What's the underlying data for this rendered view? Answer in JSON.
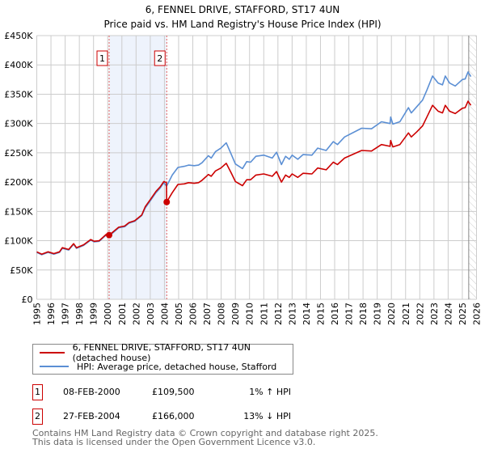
{
  "chart_data": {
    "type": "line",
    "title": "6, FENNEL DRIVE, STAFFORD, ST17 4UN",
    "subtitle": "Price paid vs. HM Land Registry's House Price Index (HPI)",
    "xlim": [
      1995,
      2026
    ],
    "ylim": [
      0,
      450000
    ],
    "y_ticks": [
      0,
      50000,
      100000,
      150000,
      200000,
      250000,
      300000,
      350000,
      400000,
      450000
    ],
    "y_tick_labels": [
      "£0",
      "£50K",
      "£100K",
      "£150K",
      "£200K",
      "£250K",
      "£300K",
      "£350K",
      "£400K",
      "£450K"
    ],
    "x_ticks": [
      1995,
      1996,
      1997,
      1998,
      1999,
      2000,
      2001,
      2002,
      2003,
      2004,
      2005,
      2006,
      2007,
      2008,
      2009,
      2010,
      2011,
      2012,
      2013,
      2014,
      2015,
      2016,
      2017,
      2018,
      2019,
      2020,
      2021,
      2022,
      2023,
      2024,
      2025,
      2026
    ],
    "x_tick_labels": [
      "1995",
      "1996",
      "1997",
      "1998",
      "1999",
      "2000",
      "2001",
      "2002",
      "2003",
      "2004",
      "2005",
      "2006",
      "2007",
      "2008",
      "2009",
      "2010",
      "2011",
      "2012",
      "2013",
      "2014",
      "2015",
      "2016",
      "2017",
      "2018",
      "2019",
      "2020",
      "2021",
      "2022",
      "2023",
      "2024",
      "2025",
      "2026"
    ],
    "grid": true,
    "shaded_period": [
      2000.1,
      2004.16
    ],
    "forecast_hatch_from": 2025.45,
    "series": [
      {
        "name": "6, FENNEL DRIVE, STAFFORD, ST17 4UN (detached house)",
        "color": "#cc0000",
        "x": [
          1995.0,
          1995.35,
          1995.8,
          1996.2,
          1996.6,
          1996.8,
          1997.25,
          1997.6,
          1997.8,
          1998.3,
          1998.8,
          1999.05,
          1999.4,
          1999.9,
          2000.1,
          2000.77,
          2001.2,
          2001.5,
          2001.9,
          2002.4,
          2002.65,
          2003.0,
          2003.4,
          2003.7,
          2003.95,
          2004.14,
          2004.16,
          2004.55,
          2004.95,
          2005.4,
          2005.7,
          2006.1,
          2006.4,
          2006.65,
          2007.1,
          2007.3,
          2007.6,
          2007.98,
          2008.36,
          2008.7,
          2009.0,
          2009.5,
          2009.8,
          2010.07,
          2010.45,
          2011.0,
          2011.6,
          2011.9,
          2012.25,
          2012.54,
          2012.8,
          2013.0,
          2013.4,
          2013.77,
          2014.4,
          2014.8,
          2015.4,
          2015.9,
          2016.2,
          2016.7,
          2017.9,
          2018.6,
          2019.3,
          2019.9,
          2019.95,
          2020.1,
          2020.6,
          2021.2,
          2021.4,
          2021.8,
          2022.2,
          2022.5,
          2022.9,
          2023.3,
          2023.6,
          2023.8,
          2024.1,
          2024.5,
          2025.0,
          2025.2,
          2025.4,
          2025.6
        ],
        "y": [
          81000,
          77000,
          81000,
          78000,
          81000,
          88000,
          85000,
          95000,
          88000,
          93000,
          102000,
          99000,
          100000,
          111000,
          109500,
          123000,
          125000,
          131000,
          134000,
          144000,
          158000,
          170000,
          184000,
          192000,
          201000,
          199000,
          166000,
          182000,
          196000,
          197000,
          199000,
          198000,
          199000,
          203000,
          213000,
          210000,
          219000,
          224000,
          232000,
          216000,
          201000,
          194000,
          204000,
          204000,
          212000,
          214000,
          210000,
          218000,
          200000,
          212000,
          208000,
          214000,
          208000,
          215000,
          214000,
          224000,
          221000,
          234000,
          230000,
          241000,
          254000,
          253000,
          264000,
          261000,
          271000,
          260000,
          264000,
          284000,
          277000,
          286000,
          296000,
          311000,
          331000,
          321000,
          318000,
          331000,
          321000,
          317000,
          326000,
          327000,
          338000,
          331000
        ]
      },
      {
        "name": "HPI: Average price, detached house, Stafford",
        "color": "#5b8fd4",
        "x": [
          1995.0,
          1995.35,
          1995.8,
          1996.2,
          1996.6,
          1996.8,
          1997.25,
          1997.6,
          1997.8,
          1998.3,
          1998.8,
          1999.05,
          1999.4,
          1999.9,
          2000.1,
          2000.77,
          2001.2,
          2001.5,
          2001.9,
          2002.4,
          2002.65,
          2003.0,
          2003.4,
          2003.7,
          2003.95,
          2004.15,
          2004.55,
          2004.95,
          2005.4,
          2005.7,
          2006.1,
          2006.4,
          2006.65,
          2007.1,
          2007.3,
          2007.6,
          2007.98,
          2008.36,
          2008.7,
          2009.0,
          2009.5,
          2009.8,
          2010.07,
          2010.45,
          2011.0,
          2011.6,
          2011.9,
          2012.25,
          2012.54,
          2012.8,
          2013.0,
          2013.4,
          2013.77,
          2014.4,
          2014.8,
          2015.4,
          2015.9,
          2016.2,
          2016.7,
          2017.9,
          2018.6,
          2019.3,
          2019.9,
          2019.95,
          2020.1,
          2020.6,
          2021.2,
          2021.4,
          2021.8,
          2022.2,
          2022.5,
          2022.9,
          2023.3,
          2023.6,
          2023.8,
          2024.1,
          2024.5,
          2025.0,
          2025.2,
          2025.4,
          2025.6
        ],
        "y": [
          80000,
          76000,
          80000,
          77000,
          80000,
          87000,
          84000,
          94000,
          87000,
          92000,
          101000,
          98000,
          99000,
          110000,
          108000,
          122000,
          124000,
          130000,
          133000,
          143000,
          156000,
          168000,
          182000,
          190000,
          199000,
          193000,
          212000,
          225000,
          227000,
          229000,
          228000,
          229000,
          233000,
          245000,
          241000,
          252000,
          258000,
          267000,
          248000,
          231000,
          223000,
          235000,
          234000,
          244000,
          246000,
          241000,
          251000,
          230000,
          244000,
          239000,
          246000,
          239000,
          247000,
          246000,
          258000,
          254000,
          269000,
          264000,
          277000,
          292000,
          291000,
          303000,
          300000,
          311000,
          299000,
          303000,
          327000,
          318000,
          329000,
          340000,
          357000,
          381000,
          369000,
          366000,
          381000,
          369000,
          364000,
          375000,
          376000,
          388000,
          380000
        ]
      }
    ],
    "sales": [
      {
        "label": "1",
        "x": 2000.1,
        "y": 109500
      },
      {
        "label": "2",
        "x": 2004.16,
        "y": 166000
      }
    ]
  },
  "legend": {
    "property": "6, FENNEL DRIVE, STAFFORD, ST17 4UN (detached house)",
    "hpi": "HPI: Average price, detached house, Stafford"
  },
  "transactions": [
    {
      "num": "1",
      "date": "08-FEB-2000",
      "price": "£109,500",
      "delta": "1% ↑ HPI"
    },
    {
      "num": "2",
      "date": "27-FEB-2004",
      "price": "£166,000",
      "delta": "13% ↓ HPI"
    }
  ],
  "footer": {
    "line1": "Contains HM Land Registry data © Crown copyright and database right 2025.",
    "line2": "This data is licensed under the Open Government Licence v3.0."
  }
}
